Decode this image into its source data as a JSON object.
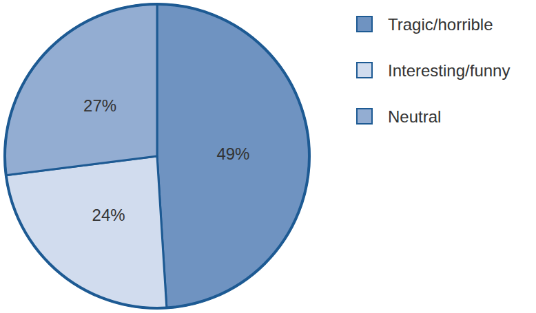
{
  "chart_data": {
    "type": "pie",
    "categories": [
      "Tragic/horrible",
      "Interesting/funny",
      "Neutral"
    ],
    "values": [
      49,
      24,
      27
    ],
    "value_labels": [
      "49%",
      "24%",
      "27%"
    ],
    "colors": [
      "#6f93c1",
      "#d1dcee",
      "#93add2"
    ],
    "data_labels": true,
    "legend": "top-right"
  }
}
